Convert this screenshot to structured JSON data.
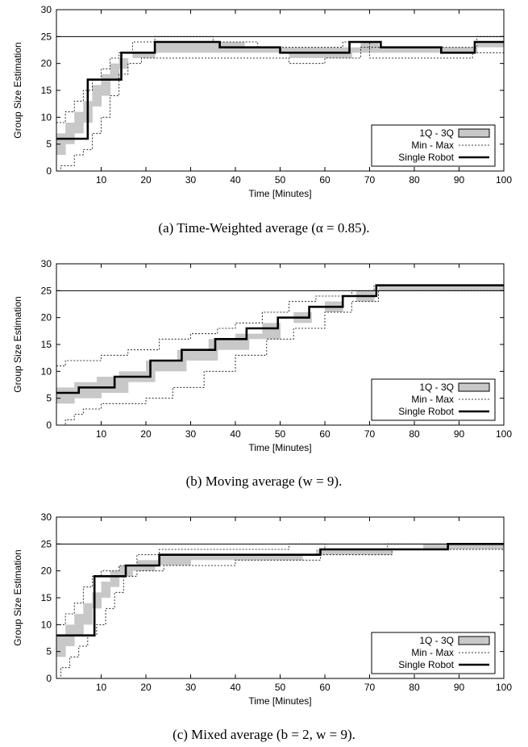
{
  "chart_data": [
    {
      "type": "step",
      "xlabel": "Time [Minutes]",
      "ylabel": "Group Size Estimation",
      "xlim": [
        0,
        100
      ],
      "ylim": [
        0,
        30
      ],
      "xticks": [
        10,
        20,
        30,
        40,
        50,
        60,
        70,
        80,
        90,
        100
      ],
      "yticks": [
        0,
        5,
        10,
        15,
        20,
        25,
        30
      ],
      "reference_line": 25,
      "legend": {
        "placement": "bottom-right",
        "entries": [
          "1Q - 3Q",
          "Min - Max",
          "Single Robot"
        ]
      },
      "caption": "(a) Time-Weighted average (α = 0.85).",
      "series": [
        {
          "name": "Single Robot",
          "steps": [
            [
              0,
              6
            ],
            [
              7,
              17
            ],
            [
              14.5,
              22
            ],
            [
              22,
              24
            ],
            [
              36.5,
              23
            ],
            [
              50,
              22
            ],
            [
              65.5,
              24
            ],
            [
              72.5,
              23
            ],
            [
              86,
              22
            ],
            [
              93.5,
              24
            ],
            [
              100,
              24
            ]
          ]
        },
        {
          "name": "Min - Max (min)",
          "steps": [
            [
              0,
              0
            ],
            [
              1,
              1
            ],
            [
              2,
              1
            ],
            [
              4,
              3
            ],
            [
              6,
              4
            ],
            [
              8,
              7
            ],
            [
              10,
              10
            ],
            [
              12,
              14
            ],
            [
              14,
              18
            ],
            [
              16,
              20
            ],
            [
              19,
              21
            ],
            [
              29,
              21
            ],
            [
              30,
              21
            ],
            [
              42,
              21
            ],
            [
              52,
              20
            ],
            [
              60,
              21
            ],
            [
              67,
              21
            ],
            [
              68,
              23
            ],
            [
              70,
              21
            ],
            [
              93,
              22
            ],
            [
              100,
              22
            ]
          ]
        },
        {
          "name": "Min - Max (max)",
          "steps": [
            [
              0,
              9
            ],
            [
              2,
              11
            ],
            [
              4,
              13
            ],
            [
              6,
              15
            ],
            [
              8,
              17
            ],
            [
              10,
              19
            ],
            [
              12,
              21
            ],
            [
              14,
              22
            ],
            [
              17,
              24
            ],
            [
              22,
              25
            ],
            [
              35,
              24
            ],
            [
              45,
              23
            ],
            [
              52,
              23
            ],
            [
              60,
              23
            ],
            [
              64,
              24
            ],
            [
              70,
              23
            ],
            [
              88,
              23
            ],
            [
              94,
              25
            ],
            [
              100,
              25
            ]
          ]
        },
        {
          "name": "1Q - 3Q (lower)",
          "steps": [
            [
              0,
              3
            ],
            [
              2,
              5
            ],
            [
              4,
              7
            ],
            [
              6,
              9
            ],
            [
              8,
              12
            ],
            [
              10,
              14
            ],
            [
              12,
              17
            ],
            [
              14,
              19
            ],
            [
              16,
              21
            ],
            [
              22,
              22
            ],
            [
              28,
              22
            ],
            [
              35,
              22
            ],
            [
              42,
              22
            ],
            [
              52,
              21
            ],
            [
              60,
              21
            ],
            [
              66,
              22
            ],
            [
              72,
              22
            ],
            [
              86,
              22
            ],
            [
              94,
              23
            ],
            [
              100,
              23
            ]
          ]
        },
        {
          "name": "1Q - 3Q (upper)",
          "steps": [
            [
              0,
              7
            ],
            [
              2,
              9
            ],
            [
              4,
              11
            ],
            [
              6,
              13
            ],
            [
              8,
              16
            ],
            [
              10,
              18
            ],
            [
              12,
              20
            ],
            [
              14,
              21
            ],
            [
              17,
              22
            ],
            [
              22,
              24
            ],
            [
              36,
              24
            ],
            [
              42,
              23
            ],
            [
              50,
              23
            ],
            [
              58,
              23
            ],
            [
              64,
              23
            ],
            [
              68,
              24
            ],
            [
              72,
              23
            ],
            [
              86,
              23
            ],
            [
              94,
              24
            ],
            [
              100,
              24
            ]
          ]
        }
      ]
    },
    {
      "type": "step",
      "xlabel": "Time [Minutes]",
      "ylabel": "Group Size Estimation",
      "xlim": [
        0,
        100
      ],
      "ylim": [
        0,
        30
      ],
      "xticks": [
        10,
        20,
        30,
        40,
        50,
        60,
        70,
        80,
        90,
        100
      ],
      "yticks": [
        0,
        5,
        10,
        15,
        20,
        25,
        30
      ],
      "reference_line": 25,
      "legend": {
        "placement": "bottom-right",
        "entries": [
          "1Q - 3Q",
          "Min - Max",
          "Single Robot"
        ]
      },
      "caption": "(b) Moving average (w = 9).",
      "series": [
        {
          "name": "Single Robot",
          "steps": [
            [
              0,
              6
            ],
            [
              5,
              7
            ],
            [
              13,
              9
            ],
            [
              21,
              12
            ],
            [
              28,
              14
            ],
            [
              35.5,
              16
            ],
            [
              42.5,
              18
            ],
            [
              49.5,
              20
            ],
            [
              56.5,
              22
            ],
            [
              64,
              24
            ],
            [
              71.5,
              26
            ],
            [
              100,
              26
            ]
          ]
        },
        {
          "name": "Min - Max (min)",
          "steps": [
            [
              0,
              0
            ],
            [
              2,
              1
            ],
            [
              4,
              2
            ],
            [
              6,
              3
            ],
            [
              10,
              4
            ],
            [
              15,
              4
            ],
            [
              20,
              5
            ],
            [
              26,
              7
            ],
            [
              33,
              10
            ],
            [
              40,
              13
            ],
            [
              47,
              16
            ],
            [
              53,
              18
            ],
            [
              60,
              21
            ],
            [
              66,
              23
            ],
            [
              72,
              25
            ],
            [
              100,
              25
            ]
          ]
        },
        {
          "name": "Min - Max (max)",
          "steps": [
            [
              0,
              11
            ],
            [
              2,
              12
            ],
            [
              10,
              13
            ],
            [
              16,
              14
            ],
            [
              23,
              16
            ],
            [
              30,
              17
            ],
            [
              36,
              18
            ],
            [
              40,
              19
            ],
            [
              46,
              21
            ],
            [
              52,
              23
            ],
            [
              58,
              24
            ],
            [
              66,
              25
            ],
            [
              71,
              26
            ],
            [
              100,
              26
            ]
          ]
        },
        {
          "name": "1Q - 3Q (lower)",
          "steps": [
            [
              0,
              4
            ],
            [
              4,
              5
            ],
            [
              10,
              6
            ],
            [
              16,
              8
            ],
            [
              22,
              10
            ],
            [
              29,
              12
            ],
            [
              36,
              14
            ],
            [
              43,
              16
            ],
            [
              50,
              19
            ],
            [
              57,
              21
            ],
            [
              64,
              23
            ],
            [
              71,
              25
            ],
            [
              100,
              25
            ]
          ]
        },
        {
          "name": "1Q - 3Q (upper)",
          "steps": [
            [
              0,
              7
            ],
            [
              4,
              8
            ],
            [
              9,
              9
            ],
            [
              14,
              10
            ],
            [
              20,
              12
            ],
            [
              27,
              14
            ],
            [
              34,
              16
            ],
            [
              40,
              17
            ],
            [
              46,
              19
            ],
            [
              53,
              21
            ],
            [
              60,
              23
            ],
            [
              67,
              25
            ],
            [
              72,
              26
            ],
            [
              100,
              26
            ]
          ]
        }
      ]
    },
    {
      "type": "step",
      "xlabel": "Time [Minutes]",
      "ylabel": "Group Size Estimation",
      "xlim": [
        0,
        100
      ],
      "ylim": [
        0,
        30
      ],
      "xticks": [
        10,
        20,
        30,
        40,
        50,
        60,
        70,
        80,
        90,
        100
      ],
      "yticks": [
        0,
        5,
        10,
        15,
        20,
        25,
        30
      ],
      "reference_line": 25,
      "legend": {
        "placement": "bottom-right",
        "entries": [
          "1Q - 3Q",
          "Min - Max",
          "Single Robot"
        ]
      },
      "caption": "(c) Mixed average (b = 2, w = 9).",
      "series": [
        {
          "name": "Single Robot",
          "steps": [
            [
              0,
              8
            ],
            [
              8.5,
              19
            ],
            [
              15.5,
              21
            ],
            [
              23,
              23
            ],
            [
              59,
              24
            ],
            [
              87.5,
              25
            ],
            [
              100,
              25
            ]
          ]
        },
        {
          "name": "Min - Max (min)",
          "steps": [
            [
              0,
              0
            ],
            [
              1,
              2
            ],
            [
              3,
              4
            ],
            [
              5,
              6
            ],
            [
              7,
              8
            ],
            [
              9,
              10
            ],
            [
              11,
              13
            ],
            [
              13,
              16
            ],
            [
              15,
              19
            ],
            [
              18,
              20
            ],
            [
              24,
              21
            ],
            [
              40,
              22
            ],
            [
              50,
              22
            ],
            [
              59,
              23
            ],
            [
              75,
              24
            ],
            [
              90,
              24
            ],
            [
              100,
              24
            ]
          ]
        },
        {
          "name": "Min - Max (max)",
          "steps": [
            [
              0,
              10
            ],
            [
              2,
              12
            ],
            [
              4,
              14
            ],
            [
              6,
              17
            ],
            [
              8,
              19
            ],
            [
              10,
              20
            ],
            [
              14,
              21
            ],
            [
              18,
              23
            ],
            [
              23,
              24
            ],
            [
              52,
              25
            ],
            [
              60,
              24
            ],
            [
              66,
              24
            ],
            [
              74,
              25
            ],
            [
              100,
              25
            ]
          ]
        },
        {
          "name": "1Q - 3Q (lower)",
          "steps": [
            [
              0,
              4
            ],
            [
              2,
              6
            ],
            [
              4,
              8
            ],
            [
              6,
              10
            ],
            [
              8,
              13
            ],
            [
              10,
              15
            ],
            [
              12,
              17
            ],
            [
              14,
              19
            ],
            [
              17,
              20
            ],
            [
              22,
              21
            ],
            [
              30,
              22
            ],
            [
              45,
              22
            ],
            [
              55,
              23
            ],
            [
              65,
              23
            ],
            [
              75,
              24
            ],
            [
              85,
              24
            ],
            [
              90,
              24
            ],
            [
              100,
              24
            ]
          ]
        },
        {
          "name": "1Q - 3Q (upper)",
          "steps": [
            [
              0,
              8
            ],
            [
              2,
              10
            ],
            [
              4,
              12
            ],
            [
              6,
              14
            ],
            [
              8,
              16
            ],
            [
              10,
              18
            ],
            [
              12,
              20
            ],
            [
              14,
              21
            ],
            [
              18,
              22
            ],
            [
              23,
              23
            ],
            [
              50,
              23
            ],
            [
              58,
              24
            ],
            [
              66,
              24
            ],
            [
              78,
              24
            ],
            [
              82,
              25
            ],
            [
              88,
              25
            ],
            [
              100,
              25
            ]
          ]
        }
      ]
    }
  ]
}
